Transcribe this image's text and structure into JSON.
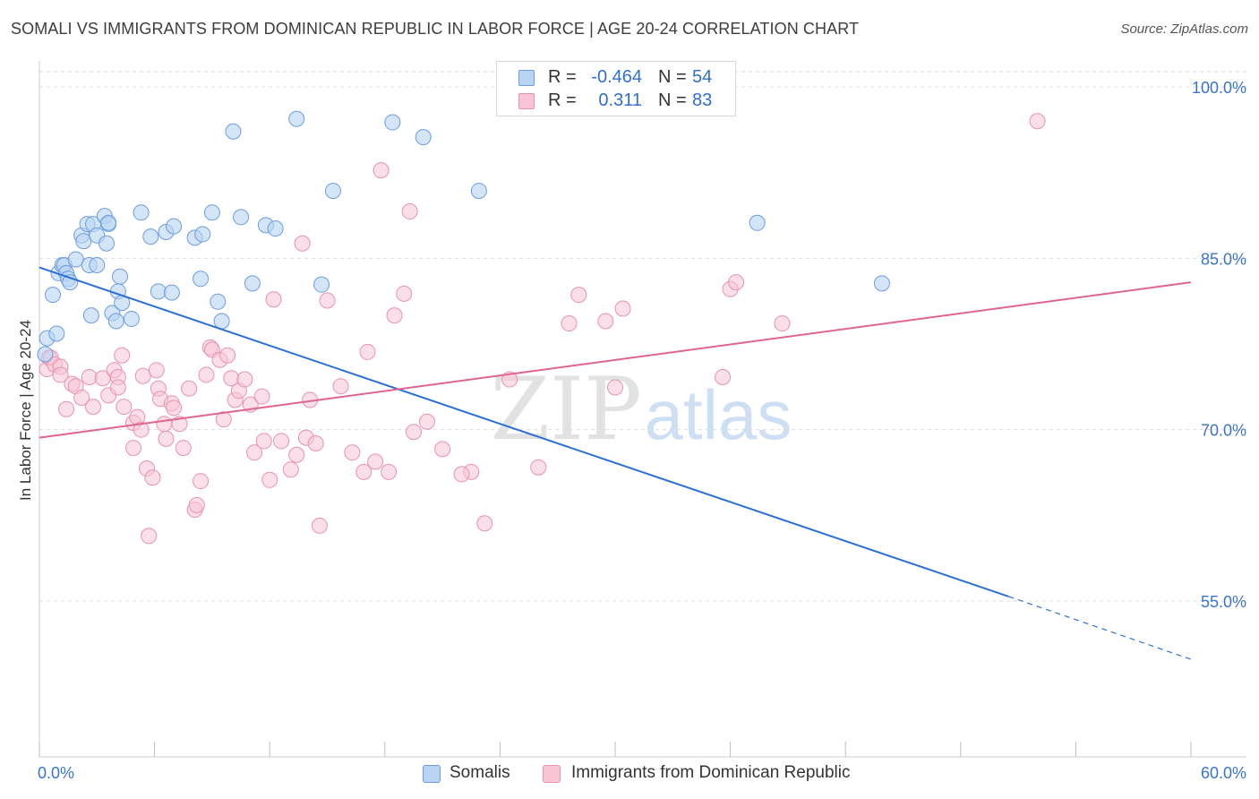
{
  "header": {
    "title": "SOMALI VS IMMIGRANTS FROM DOMINICAN REPUBLIC IN LABOR FORCE | AGE 20-24 CORRELATION CHART",
    "source": "Source: ZipAtlas.com"
  },
  "watermark": {
    "zip": "ZIP",
    "atlas": "atlas"
  },
  "stats_legend": {
    "r_label": "R =",
    "n_label": "N =",
    "rows": [
      {
        "r": "-0.464",
        "n": "54"
      },
      {
        "r": "0.311",
        "n": "83"
      }
    ]
  },
  "colors": {
    "somali_fill": "#b9d3f3",
    "somali_stroke": "#6b9de0",
    "somali_line": "#2b70d4",
    "dominican_fill": "#f8c5d5",
    "dominican_stroke": "#e892ae",
    "dominican_line": "#e0648f",
    "tick_label": "#3a74c9",
    "grid": "#dddddd"
  },
  "chart_data": {
    "type": "scatter",
    "title": "SOMALI VS IMMIGRANTS FROM DOMINICAN REPUBLIC IN LABOR FORCE | AGE 20-24 CORRELATION CHART",
    "xlabel": "",
    "ylabel": "In Labor Force | Age 20-24",
    "xlim": [
      0,
      60
    ],
    "ylim": [
      40,
      102
    ],
    "x_tick_labels": [
      "0.0%",
      "60.0%"
    ],
    "y_ticks": [
      55,
      70,
      85,
      100
    ],
    "y_tick_labels": [
      "55.0%",
      "70.0%",
      "85.0%",
      "100.0%"
    ],
    "grid": true,
    "legend_placement": "bottom",
    "series": [
      {
        "name": "Somalis",
        "points": [
          [
            0.3,
            76.6
          ],
          [
            0.4,
            78.0
          ],
          [
            0.7,
            81.8
          ],
          [
            0.9,
            78.4
          ],
          [
            1.0,
            83.7
          ],
          [
            1.2,
            84.4
          ],
          [
            1.3,
            84.4
          ],
          [
            1.4,
            83.7
          ],
          [
            1.5,
            83.2
          ],
          [
            1.6,
            82.9
          ],
          [
            1.9,
            84.9
          ],
          [
            2.2,
            87.0
          ],
          [
            2.3,
            86.5
          ],
          [
            2.5,
            88.0
          ],
          [
            2.6,
            84.4
          ],
          [
            2.7,
            80.0
          ],
          [
            2.8,
            88.0
          ],
          [
            3.0,
            87.0
          ],
          [
            3.0,
            84.4
          ],
          [
            3.4,
            88.7
          ],
          [
            3.6,
            88.0
          ],
          [
            3.5,
            86.3
          ],
          [
            3.6,
            88.1
          ],
          [
            3.8,
            80.2
          ],
          [
            4.0,
            79.5
          ],
          [
            4.1,
            82.1
          ],
          [
            4.2,
            83.4
          ],
          [
            4.3,
            81.1
          ],
          [
            4.8,
            79.7
          ],
          [
            5.3,
            89.0
          ],
          [
            5.8,
            86.9
          ],
          [
            6.2,
            82.1
          ],
          [
            6.6,
            87.3
          ],
          [
            6.9,
            82.0
          ],
          [
            7.0,
            87.8
          ],
          [
            8.1,
            86.8
          ],
          [
            8.4,
            83.2
          ],
          [
            8.5,
            87.1
          ],
          [
            9.0,
            89.0
          ],
          [
            9.3,
            81.2
          ],
          [
            9.5,
            79.5
          ],
          [
            10.1,
            96.1
          ],
          [
            10.5,
            88.6
          ],
          [
            11.1,
            82.8
          ],
          [
            11.8,
            87.9
          ],
          [
            12.3,
            87.6
          ],
          [
            13.4,
            97.2
          ],
          [
            14.7,
            82.7
          ],
          [
            15.3,
            90.9
          ],
          [
            18.4,
            96.9
          ],
          [
            20.0,
            95.6
          ],
          [
            22.9,
            90.9
          ],
          [
            43.9,
            82.8
          ],
          [
            37.4,
            88.1
          ]
        ],
        "note_hidden": ""
      },
      {
        "name": "Immigrants from Dominican Republic",
        "points": []
      }
    ],
    "trendlines": [
      {
        "series": "Somalis",
        "x": [
          0,
          50.5
        ],
        "y": [
          84.2,
          55.4
        ],
        "dashed_to": [
          60,
          49.9
        ]
      },
      {
        "series": "Immigrants from Dominican Republic",
        "x": [
          0,
          60
        ],
        "y": [
          69.3,
          82.9
        ]
      }
    ]
  },
  "bottom_legend": {
    "items": [
      {
        "label": "Somalis"
      },
      {
        "label": "Immigrants from Dominican Republic"
      }
    ]
  }
}
